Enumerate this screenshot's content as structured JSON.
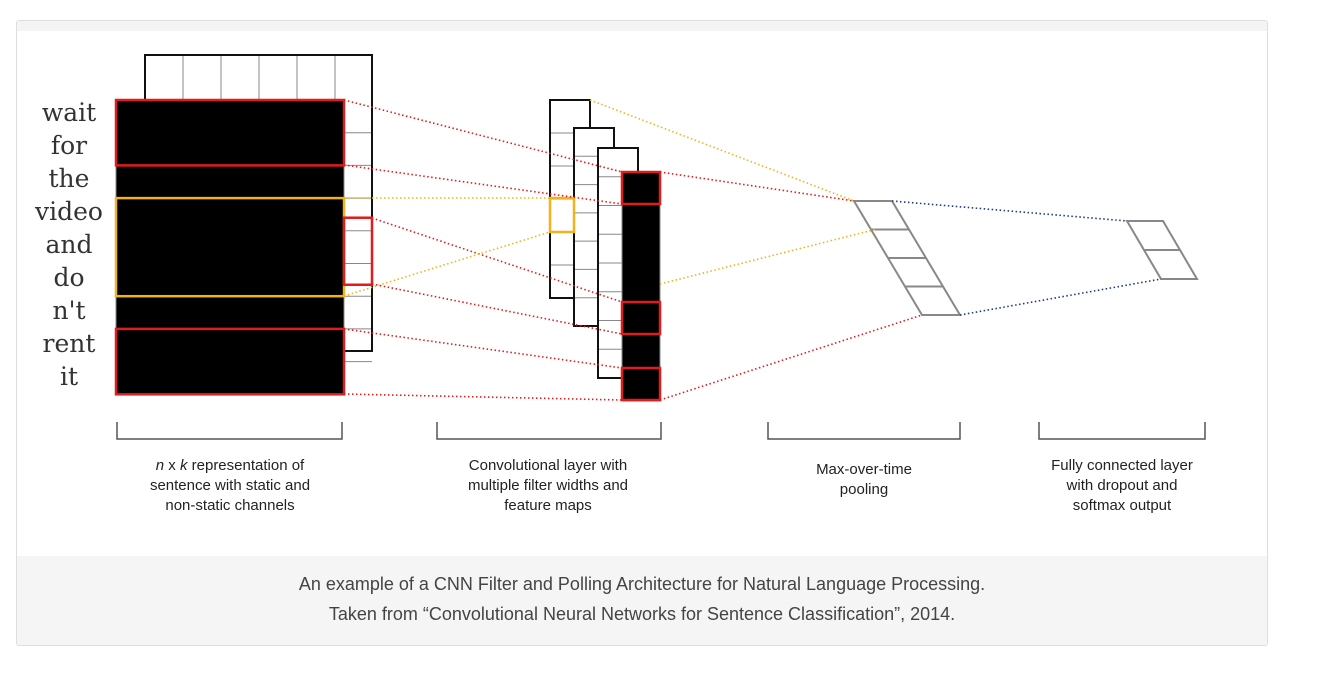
{
  "words": [
    "wait",
    "for",
    "the",
    "video",
    "and",
    "do",
    "n't",
    "rent",
    "it"
  ],
  "sections": [
    {
      "lines": [
        [
          "n",
          " x ",
          "k",
          " representation of"
        ],
        [
          "sentence with static and"
        ],
        [
          "non-static channels"
        ]
      ]
    },
    {
      "lines": [
        [
          "Convolutional layer with"
        ],
        [
          "multiple filter widths and"
        ],
        [
          "feature maps"
        ]
      ]
    },
    {
      "lines": [
        [
          "Max-over-time"
        ],
        [
          "pooling"
        ]
      ]
    },
    {
      "lines": [
        [
          "Fully connected layer"
        ],
        [
          "with dropout and"
        ],
        [
          "softmax output"
        ]
      ]
    }
  ],
  "caption": {
    "line1": "An example of a CNN Filter and Polling Architecture for Natural Language Processing.",
    "line2": "Taken from “Convolutional Neural Networks for Sentence Classification”, 2014."
  },
  "colors": {
    "red": "#e21b1b",
    "yellow": "#f2b21b",
    "blue": "#1f3a7a",
    "grid": "#888888"
  }
}
